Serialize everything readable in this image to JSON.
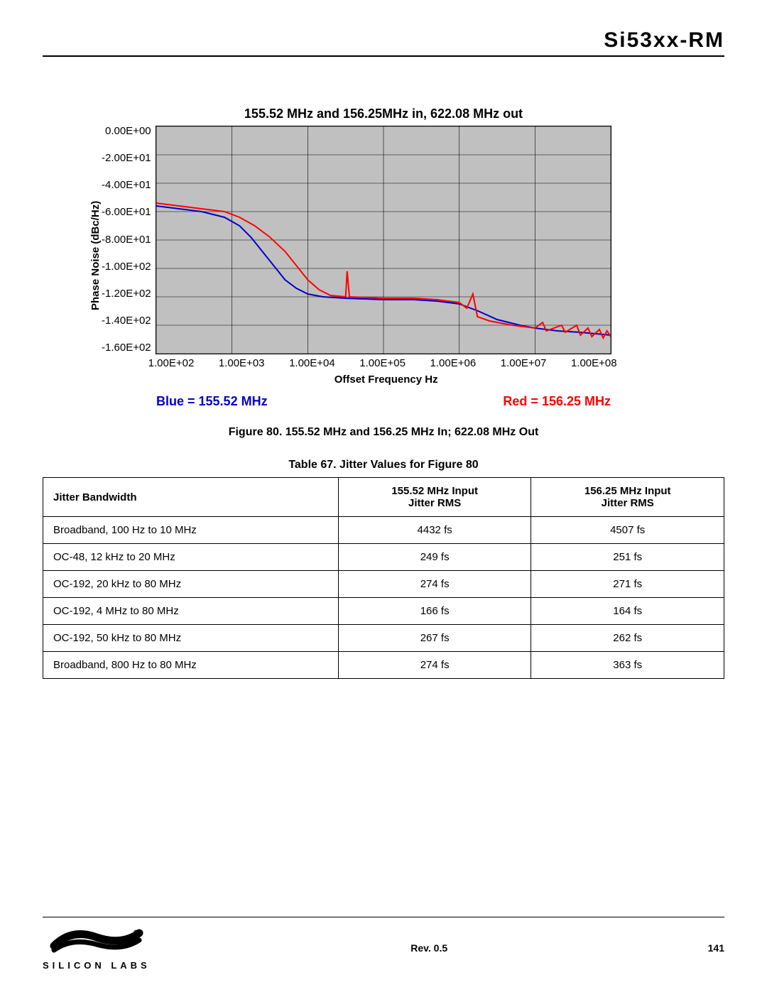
{
  "doc_title": "Si53xx-RM",
  "chart": {
    "title": "155.52 MHz and 156.25MHz in, 622.08 MHz out",
    "ylabel": "Phase Noise (dBc/Hz)",
    "xlabel": "Offset Frequency Hz",
    "ylim": [
      -160,
      0
    ],
    "xlim_log10": [
      2,
      8
    ],
    "yticks": [
      "0.00E+00",
      "-2.00E+01",
      "-4.00E+01",
      "-6.00E+01",
      "-8.00E+01",
      "-1.00E+02",
      "-1.20E+02",
      "-1.40E+02",
      "-1.60E+02"
    ],
    "xticks": [
      "1.00E+02",
      "1.00E+03",
      "1.00E+04",
      "1.00E+05",
      "1.00E+06",
      "1.00E+07",
      "1.00E+08"
    ],
    "grid_color": "#000000",
    "plot_bg": "#c0c0c0",
    "line_width": 2,
    "series": [
      {
        "name": "blue",
        "color": "#0000c8",
        "label": "Blue = 155.52 MHz",
        "points_log10x_y": [
          [
            2,
            -56
          ],
          [
            2.3,
            -58
          ],
          [
            2.6,
            -60
          ],
          [
            2.9,
            -64
          ],
          [
            3.1,
            -70
          ],
          [
            3.25,
            -78
          ],
          [
            3.4,
            -88
          ],
          [
            3.55,
            -98
          ],
          [
            3.7,
            -108
          ],
          [
            3.85,
            -114
          ],
          [
            4.0,
            -118
          ],
          [
            4.2,
            -120
          ],
          [
            4.5,
            -121
          ],
          [
            5.0,
            -122
          ],
          [
            5.4,
            -122
          ],
          [
            5.7,
            -123
          ],
          [
            6.0,
            -125
          ],
          [
            6.25,
            -130
          ],
          [
            6.5,
            -136
          ],
          [
            6.8,
            -140
          ],
          [
            7.0,
            -142
          ],
          [
            7.3,
            -144
          ],
          [
            7.6,
            -145
          ],
          [
            8.0,
            -147
          ]
        ]
      },
      {
        "name": "red",
        "color": "#ff0000",
        "label": "Red = 156.25 MHz",
        "points_log10x_y": [
          [
            2,
            -54
          ],
          [
            2.3,
            -56
          ],
          [
            2.6,
            -58
          ],
          [
            2.9,
            -60
          ],
          [
            3.1,
            -64
          ],
          [
            3.3,
            -70
          ],
          [
            3.5,
            -78
          ],
          [
            3.7,
            -88
          ],
          [
            3.85,
            -98
          ],
          [
            4.0,
            -108
          ],
          [
            4.15,
            -115
          ],
          [
            4.3,
            -119
          ],
          [
            4.5,
            -120
          ],
          [
            4.52,
            -102
          ],
          [
            4.55,
            -120
          ],
          [
            5.0,
            -121
          ],
          [
            5.4,
            -121
          ],
          [
            5.7,
            -122
          ],
          [
            6.0,
            -124
          ],
          [
            6.1,
            -128
          ],
          [
            6.18,
            -118
          ],
          [
            6.24,
            -134
          ],
          [
            6.4,
            -137
          ],
          [
            6.7,
            -140
          ],
          [
            7.0,
            -142
          ],
          [
            7.1,
            -138
          ],
          [
            7.15,
            -144
          ],
          [
            7.35,
            -140
          ],
          [
            7.4,
            -145
          ],
          [
            7.55,
            -140
          ],
          [
            7.6,
            -147
          ],
          [
            7.7,
            -142
          ],
          [
            7.75,
            -148
          ],
          [
            7.85,
            -143
          ],
          [
            7.9,
            -149
          ],
          [
            7.95,
            -144
          ],
          [
            8.0,
            -148
          ]
        ]
      }
    ]
  },
  "figure_caption": "Figure 80. 155.52 MHz and 156.25 MHz In; 622.08 MHz Out",
  "table_caption": "Table 67. Jitter Values for Figure 80",
  "table": {
    "columns": [
      "Jitter Bandwidth",
      "155.52 MHz Input Jitter RMS",
      "156.25 MHz Input Jitter RMS"
    ],
    "col0_header": "Jitter Bandwidth",
    "col1_header_l1": "155.52 MHz Input",
    "col1_header_l2": "Jitter RMS",
    "col2_header_l1": "156.25 MHz Input",
    "col2_header_l2": "Jitter RMS",
    "rows": [
      [
        "Broadband, 100 Hz to 10 MHz",
        "4432 fs",
        "4507 fs"
      ],
      [
        "OC-48, 12 kHz to 20 MHz",
        "249 fs",
        "251 fs"
      ],
      [
        "OC-192, 20 kHz to 80 MHz",
        "274 fs",
        "271 fs"
      ],
      [
        "OC-192, 4 MHz to 80 MHz",
        "166 fs",
        "164 fs"
      ],
      [
        "OC-192, 50 kHz to 80 MHz",
        "267 fs",
        "262 fs"
      ],
      [
        "Broadband, 800 Hz to 80 MHz",
        "274 fs",
        "363 fs"
      ]
    ]
  },
  "footer": {
    "rev": "Rev. 0.5",
    "page": "141",
    "logo_text": "SILICON LABS"
  }
}
